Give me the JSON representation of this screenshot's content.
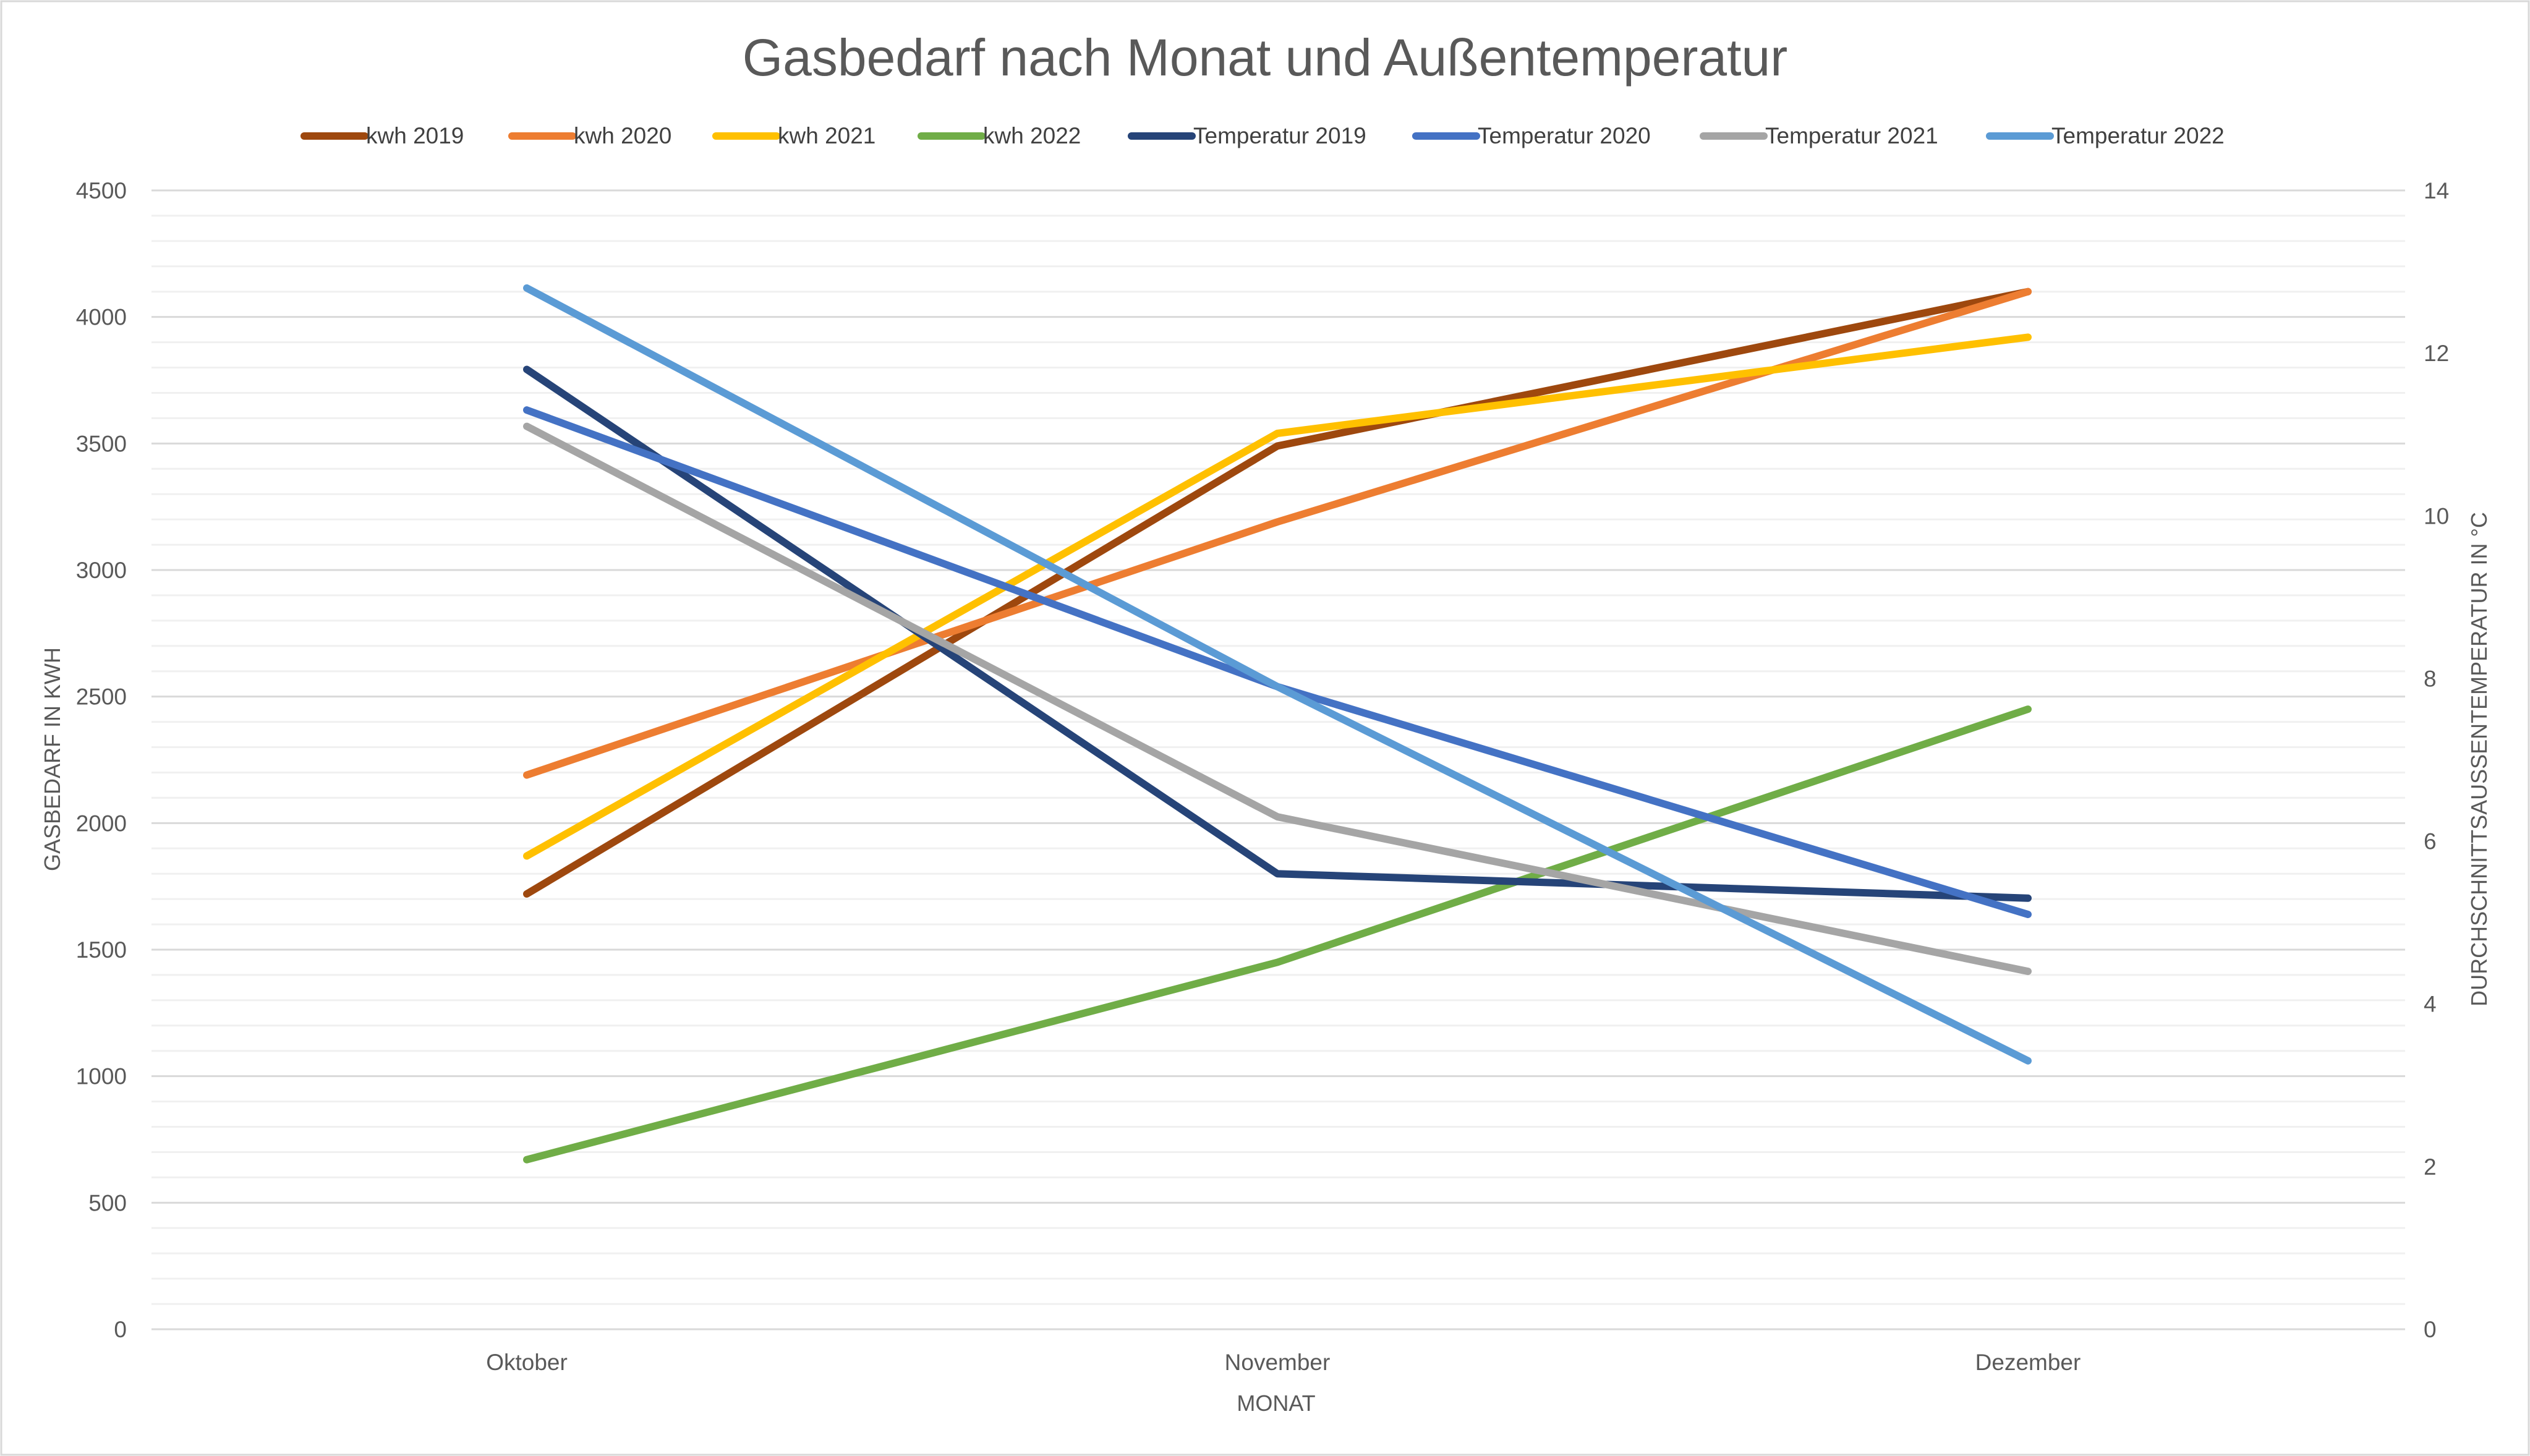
{
  "chart_data": {
    "type": "line",
    "title": "Gasbedarf nach Monat und Außentemperatur",
    "xlabel": "MONAT",
    "ylabel": "GASBEDARF IN KWH",
    "y2label": "DURCHSCHNITTSAUSSENTEMPERATUR IN °C",
    "categories": [
      "Oktober",
      "November",
      "Dezember"
    ],
    "ylim": [
      0,
      4500
    ],
    "y_ticks": [
      "0",
      "500",
      "1000",
      "1500",
      "2000",
      "2500",
      "3000",
      "3500",
      "4000",
      "4500"
    ],
    "y2lim": [
      0,
      14
    ],
    "y2_ticks": [
      "0",
      "2",
      "4",
      "6",
      "8",
      "10",
      "12",
      "14"
    ],
    "grid": true,
    "legend_position": "top",
    "series": [
      {
        "name": "kwh 2019",
        "axis": "left",
        "color": "#9E480E",
        "values": [
          1720,
          3490,
          4100
        ]
      },
      {
        "name": "kwh 2020",
        "axis": "left",
        "color": "#ED7D31",
        "values": [
          2190,
          3190,
          4100
        ]
      },
      {
        "name": "kwh 2021",
        "axis": "left",
        "color": "#FFC000",
        "values": [
          1870,
          3540,
          3920
        ]
      },
      {
        "name": "kwh 2022",
        "axis": "left",
        "color": "#70AD47",
        "values": [
          670,
          1450,
          2450
        ]
      },
      {
        "name": "Temperatur 2019",
        "axis": "right",
        "color": "#264478",
        "values": [
          11.8,
          5.6,
          5.3
        ]
      },
      {
        "name": "Temperatur 2020",
        "axis": "right",
        "color": "#4472C4",
        "values": [
          11.3,
          7.9,
          5.1
        ]
      },
      {
        "name": "Temperatur 2021",
        "axis": "right",
        "color": "#A5A5A5",
        "values": [
          11.1,
          6.3,
          4.4
        ]
      },
      {
        "name": "Temperatur 2022",
        "axis": "right",
        "color": "#5B9BD5",
        "values": [
          12.8,
          7.9,
          3.3
        ]
      }
    ]
  }
}
